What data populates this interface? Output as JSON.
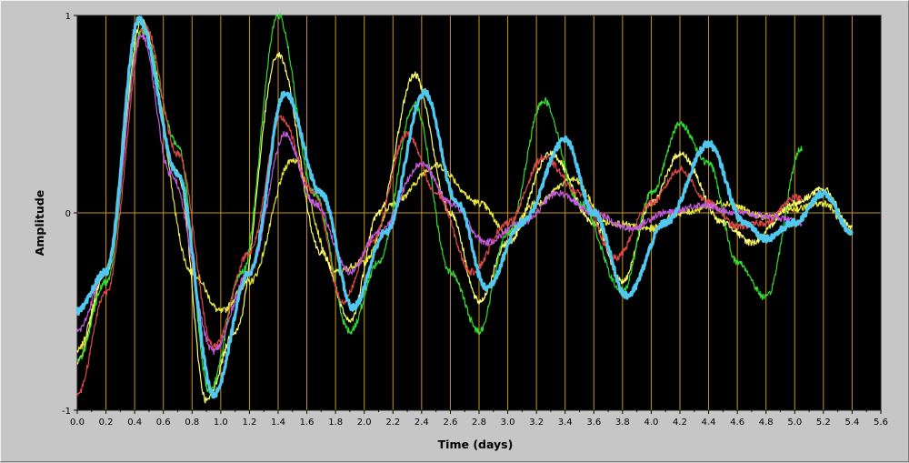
{
  "chart_data": {
    "type": "line",
    "title": "",
    "xlabel": "Time (days)",
    "ylabel": "Amplitude",
    "xlim": [
      0,
      5.6
    ],
    "ylim": [
      -1,
      1
    ],
    "x_ticks": [
      "0.0",
      "0.2",
      "0.4",
      "0.6",
      "0.8",
      "1.0",
      "1.2",
      "1.4",
      "1.6",
      "1.8",
      "2.0",
      "2.2",
      "2.4",
      "2.6",
      "2.8",
      "3.0",
      "3.2",
      "3.4",
      "3.6",
      "3.8",
      "4.0",
      "4.2",
      "4.4",
      "4.6",
      "4.8",
      "5.0",
      "5.2",
      "5.4",
      "5.6"
    ],
    "y_ticks": [
      "-1",
      "0",
      "1"
    ],
    "grid": {
      "vertical": true,
      "horizontal_zero_line": true,
      "color": "#c8961e"
    },
    "plot_background": "#000000",
    "series": [
      {
        "color": "#e8e840",
        "x": [
          0.0,
          0.2,
          0.45,
          0.8,
          1.0,
          1.2,
          1.5,
          1.8,
          2.0,
          2.2,
          2.5,
          2.8,
          3.0,
          3.2,
          3.45,
          3.7,
          4.0,
          4.2,
          4.5,
          4.8,
          5.0,
          5.2,
          5.4
        ],
        "y": [
          -0.7,
          -0.3,
          0.92,
          -0.3,
          -0.5,
          -0.35,
          0.27,
          -0.3,
          -0.25,
          0.05,
          0.24,
          0.05,
          -0.1,
          0.05,
          0.17,
          -0.05,
          -0.08,
          0.0,
          0.05,
          -0.02,
          0.02,
          0.05,
          -0.1
        ]
      },
      {
        "color": "#ffff70",
        "x": [
          0.0,
          0.2,
          0.45,
          0.7,
          0.9,
          1.1,
          1.4,
          1.7,
          1.9,
          2.1,
          2.35,
          2.6,
          2.8,
          3.0,
          3.3,
          3.6,
          3.8,
          4.0,
          4.2,
          4.5,
          4.7,
          5.0,
          5.2,
          5.4
        ],
        "y": [
          -0.75,
          -0.3,
          0.97,
          0.2,
          -0.95,
          -0.6,
          0.8,
          -0.2,
          -0.55,
          0.0,
          0.7,
          0.0,
          -0.45,
          -0.15,
          0.3,
          -0.05,
          -0.35,
          0.05,
          0.3,
          -0.05,
          -0.15,
          0.05,
          0.12,
          -0.08
        ]
      },
      {
        "color": "#32dc32",
        "x": [
          0.0,
          0.2,
          0.45,
          0.7,
          0.92,
          1.15,
          1.4,
          1.65,
          1.9,
          2.1,
          2.35,
          2.6,
          2.8,
          3.0,
          3.25,
          3.5,
          3.8,
          4.0,
          4.2,
          4.4,
          4.6,
          4.8,
          5.05
        ],
        "y": [
          -0.75,
          -0.35,
          0.93,
          0.35,
          -0.9,
          -0.3,
          1.0,
          0.1,
          -0.6,
          -0.25,
          0.55,
          -0.3,
          -0.6,
          -0.1,
          0.57,
          0.05,
          -0.4,
          0.1,
          0.45,
          0.25,
          -0.25,
          -0.43,
          0.33
        ]
      },
      {
        "color": "#e04848",
        "x": [
          0.0,
          0.2,
          0.47,
          0.7,
          0.95,
          1.2,
          1.42,
          1.65,
          1.85,
          2.05,
          2.3,
          2.5,
          2.75,
          3.0,
          3.25,
          3.5,
          3.75,
          4.0,
          4.2,
          4.4,
          4.6,
          4.8,
          5.0,
          5.05
        ],
        "y": [
          -0.92,
          -0.4,
          0.95,
          0.3,
          -0.68,
          -0.2,
          0.48,
          0.1,
          -0.45,
          -0.15,
          0.4,
          0.1,
          -0.3,
          -0.05,
          0.28,
          0.1,
          -0.23,
          0.05,
          0.22,
          0.05,
          -0.07,
          -0.05,
          0.08,
          0.07
        ]
      },
      {
        "color": "#c45adc",
        "x": [
          0.0,
          0.2,
          0.45,
          0.65,
          0.95,
          1.2,
          1.45,
          1.65,
          1.9,
          2.1,
          2.4,
          2.6,
          2.85,
          3.1,
          3.35,
          3.6,
          3.85,
          4.1,
          4.35,
          4.6,
          4.85,
          5.05
        ],
        "y": [
          -0.6,
          -0.3,
          0.9,
          0.2,
          -0.7,
          -0.3,
          0.4,
          0.05,
          -0.3,
          -0.1,
          0.25,
          0.05,
          -0.15,
          -0.05,
          0.1,
          0.0,
          -0.08,
          0.0,
          0.04,
          0.0,
          -0.02,
          -0.05
        ]
      },
      {
        "color": "#50c8f0",
        "x": [
          0.0,
          0.2,
          0.43,
          0.7,
          0.95,
          1.2,
          1.45,
          1.7,
          1.92,
          2.15,
          2.42,
          2.65,
          2.85,
          3.1,
          3.4,
          3.6,
          3.83,
          4.1,
          4.4,
          4.65,
          4.8,
          5.0,
          5.2,
          5.4
        ],
        "y": [
          -0.5,
          -0.3,
          0.98,
          0.2,
          -0.92,
          -0.3,
          0.61,
          0.1,
          -0.48,
          -0.1,
          0.61,
          0.05,
          -0.38,
          -0.05,
          0.37,
          0.0,
          -0.42,
          -0.05,
          0.35,
          -0.05,
          -0.13,
          -0.05,
          0.1,
          -0.1
        ]
      }
    ]
  }
}
